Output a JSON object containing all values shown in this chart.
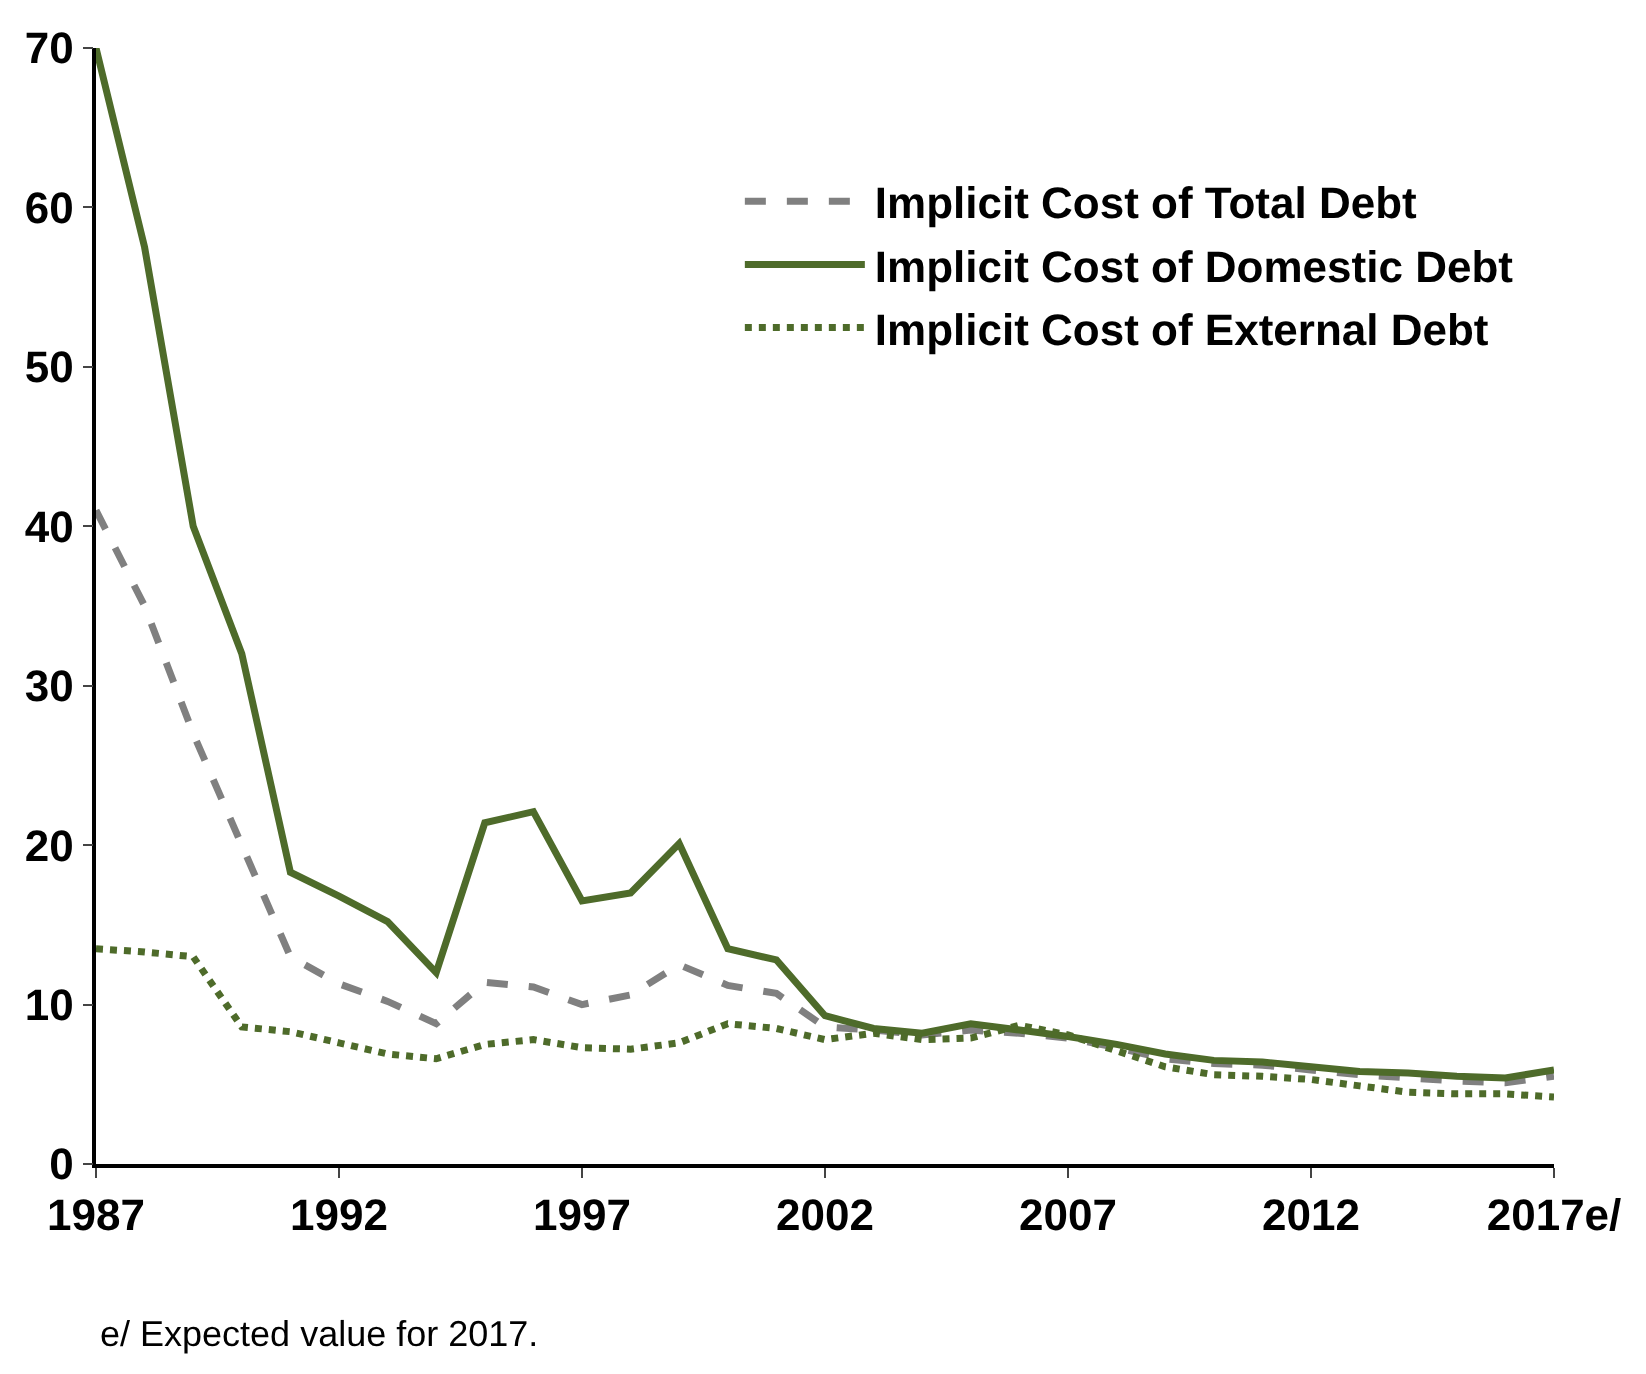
{
  "chart_data": {
    "type": "line",
    "x": [
      1987,
      1988,
      1989,
      1990,
      1991,
      1992,
      1993,
      1994,
      1995,
      1996,
      1997,
      1998,
      1999,
      2000,
      2001,
      2002,
      2003,
      2004,
      2005,
      2006,
      2007,
      2008,
      2009,
      2010,
      2011,
      2012,
      2013,
      2014,
      2015,
      2016,
      2017
    ],
    "series": [
      {
        "name": "Implicit Cost of Total Debt",
        "color": "#808080",
        "line_style": "dashed",
        "values": [
          41,
          35,
          27,
          20,
          13,
          11.3,
          10.2,
          8.8,
          11.4,
          11.1,
          10,
          10.6,
          12.5,
          11.2,
          10.7,
          8.6,
          8.4,
          8.1,
          8.4,
          8.2,
          7.9,
          7.3,
          6.6,
          6.3,
          6.2,
          5.9,
          5.6,
          5.4,
          5.2,
          5.1,
          5.5
        ]
      },
      {
        "name": "Implicit Cost of Domestic Debt",
        "color": "#4e6b2a",
        "line_style": "solid",
        "values": [
          70,
          57.5,
          40,
          32,
          18.3,
          16.8,
          15.2,
          12,
          21.4,
          22.1,
          16.5,
          17,
          20.1,
          13.5,
          12.8,
          9.3,
          8.5,
          8.2,
          8.8,
          8.4,
          8,
          7.5,
          6.9,
          6.5,
          6.4,
          6.1,
          5.8,
          5.7,
          5.5,
          5.4,
          5.9
        ]
      },
      {
        "name": "Implicit Cost of External Debt",
        "color": "#4e6b2a",
        "line_style": "dotted",
        "values": [
          13.5,
          13.3,
          13,
          8.6,
          8.3,
          7.6,
          6.9,
          6.6,
          7.5,
          7.8,
          7.3,
          7.2,
          7.6,
          8.8,
          8.5,
          7.8,
          8.2,
          7.8,
          7.9,
          8.7,
          8.1,
          7.1,
          6.1,
          5.6,
          5.5,
          5.3,
          4.9,
          4.5,
          4.4,
          4.4,
          4.2
        ]
      }
    ],
    "xlim": [
      1987,
      2017
    ],
    "xticks": [
      1987,
      1992,
      1997,
      2002,
      2007,
      2012,
      {
        "value": 2017,
        "label": "2017e/"
      }
    ],
    "ylim": [
      0,
      70
    ],
    "yticks": [
      0,
      10,
      20,
      30,
      40,
      50,
      60,
      70
    ],
    "legend": "top right",
    "marker": "none",
    "annotations": [
      "e/ Expected value for 2017."
    ]
  }
}
